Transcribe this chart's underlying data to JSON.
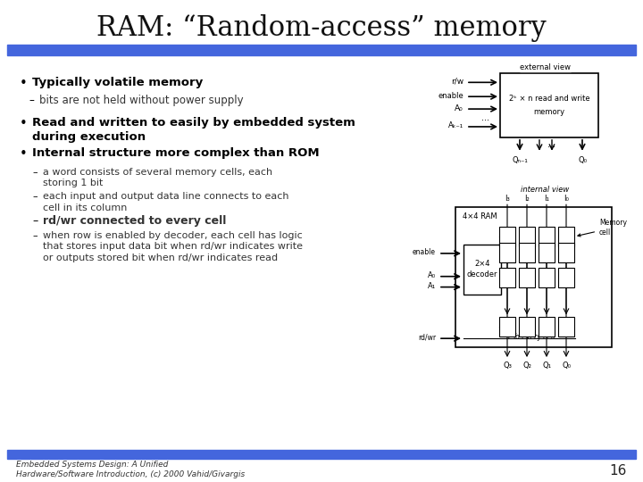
{
  "title": "RAM: “Random-access” memory",
  "title_fontsize": 22,
  "bg_color": "#ffffff",
  "bar_color": "#4466dd",
  "bullet1_bold": "Typically volatile memory",
  "bullet1_sub": "bits are not held without power supply",
  "bullet2_bold": "Read and written to easily by embedded system\nduring execution",
  "bullet3_bold": "Internal structure more complex than ROM",
  "sub1": "a word consists of several memory cells, each\nstoring 1 bit",
  "sub2": "each input and output data line connects to each\ncell in its column",
  "sub3": "rd/wr connected to every cell",
  "sub4": "when row is enabled by decoder, each cell has logic\nthat stores input data bit when rd/wr indicates write\nor outputs stored bit when rd/wr indicates read",
  "footer": "Embedded Systems Design: A Unified\nHardware/Software Introduction, (c) 2000 Vahid/Givargis",
  "page_num": "16"
}
